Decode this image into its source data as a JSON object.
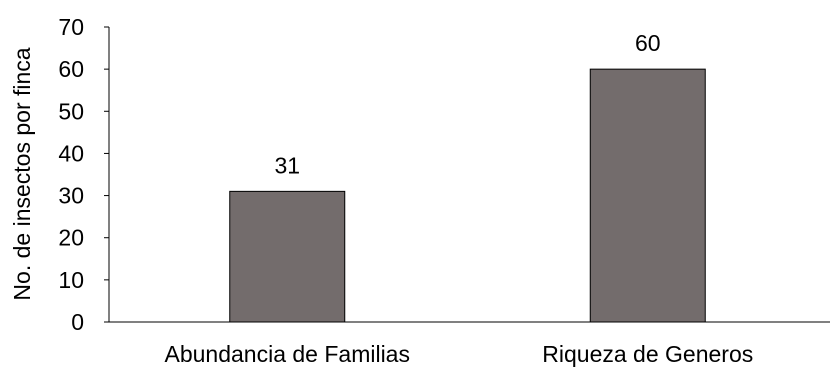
{
  "chart_data": {
    "type": "bar",
    "categories": [
      "Abundancia de Familias",
      "Riqueza de Generos"
    ],
    "values": [
      31,
      60
    ],
    "data_labels": [
      "31",
      "60"
    ],
    "ylabel": "No. de insectos por finca",
    "xlabel": "",
    "ylim": [
      0,
      70
    ],
    "yticks": [
      0,
      10,
      20,
      30,
      40,
      50,
      60,
      70
    ],
    "bar_color": "#736c6c",
    "bar_edge_color": "#000000",
    "grid": false,
    "legend": "none"
  }
}
